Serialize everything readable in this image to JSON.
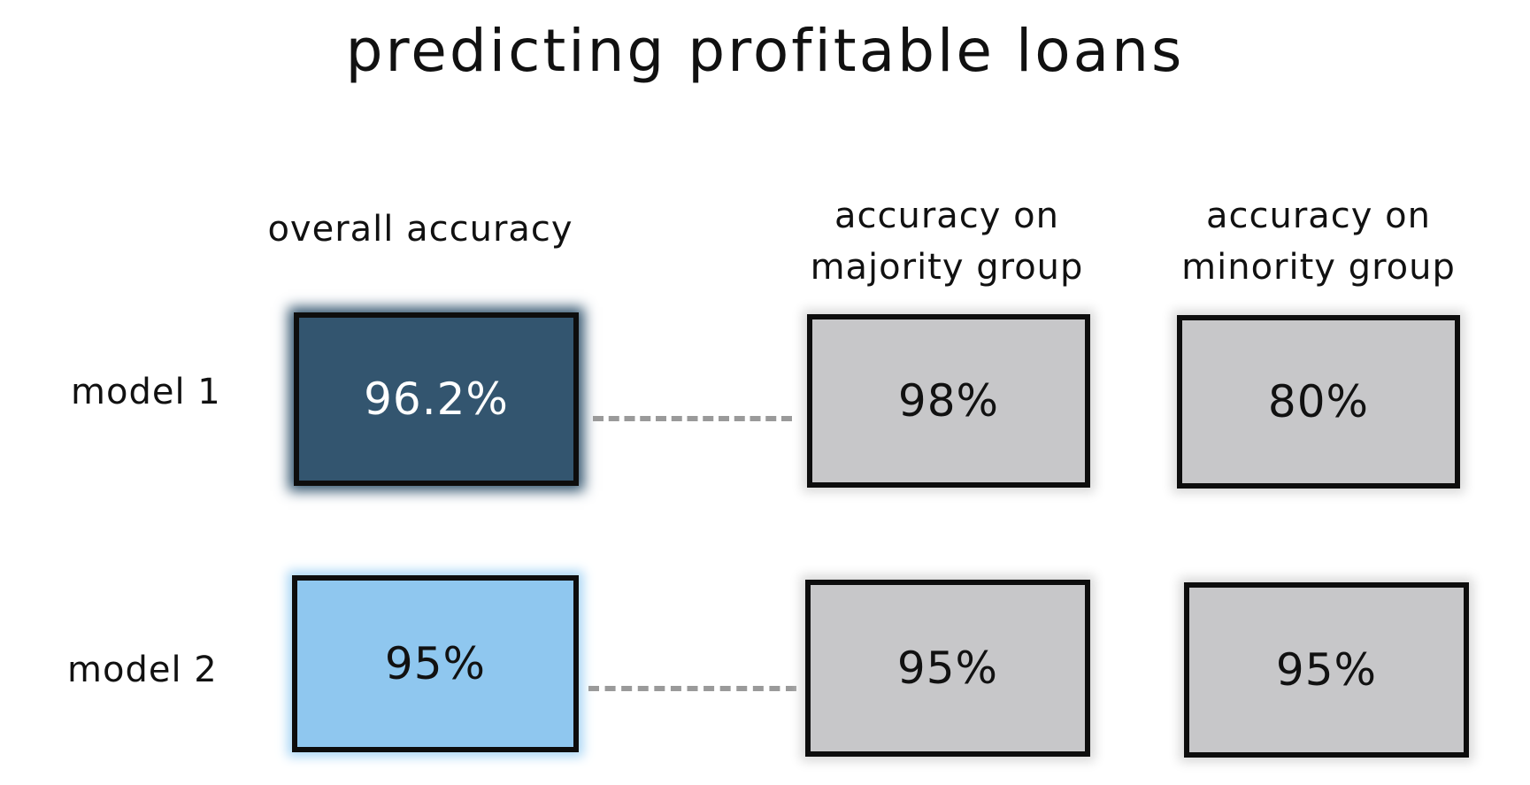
{
  "title": "predicting profitable loans",
  "columns": {
    "overall": "overall accuracy",
    "majority": [
      "accuracy on",
      "majority group"
    ],
    "minority": [
      "accuracy on",
      "minority group"
    ]
  },
  "rows": [
    {
      "label": "model 1",
      "overall": "96.2%",
      "majority": "98%",
      "minority": "80%"
    },
    {
      "label": "model 2",
      "overall": "95%",
      "majority": "95%",
      "minority": "95%"
    }
  ],
  "colors": {
    "model1_overall": "#33556f",
    "model2_overall": "#8fc7ef",
    "group_box": "#c7c7c9",
    "connector": "#9a9a9a"
  }
}
